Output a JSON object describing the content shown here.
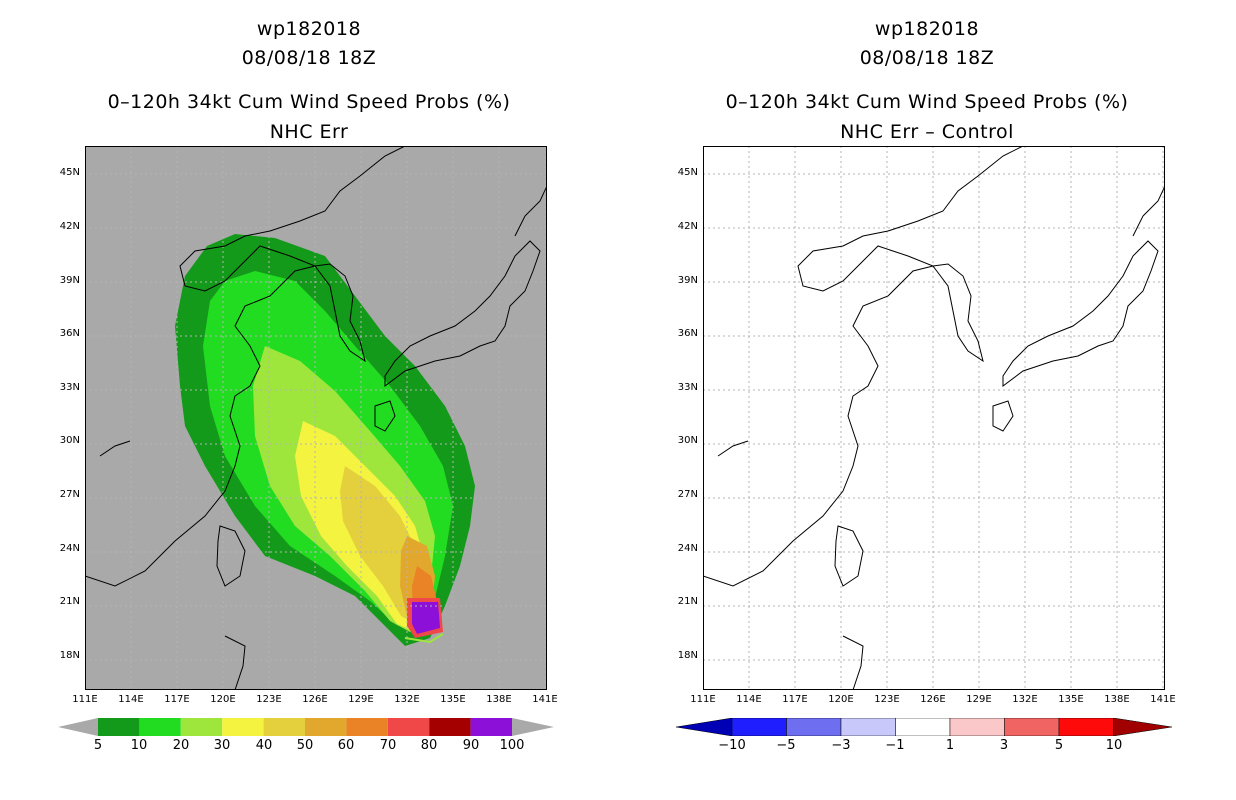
{
  "left": {
    "storm": "wp182018",
    "datetime": "08/08/18 18Z",
    "product": "0–120h 34kt Cum Wind Speed Probs (%)",
    "subtitle": "NHC Err",
    "colorbar": {
      "labels": [
        "5",
        "10",
        "20",
        "30",
        "40",
        "50",
        "60",
        "70",
        "80",
        "90",
        "100"
      ],
      "colors": [
        "#149a1a",
        "#22dc22",
        "#9ee63c",
        "#f4f440",
        "#e4d03c",
        "#e2a82e",
        "#ea8226",
        "#f04848",
        "#a40000",
        "#8c10d8"
      ]
    }
  },
  "right": {
    "storm": "wp182018",
    "datetime": "08/08/18 18Z",
    "product": "0–120h 34kt Cum Wind Speed Probs (%)",
    "subtitle": "NHC Err – Control",
    "colorbar": {
      "labels": [
        "−10",
        "−5",
        "−3",
        "−1",
        "1",
        "3",
        "5",
        "10"
      ],
      "colors": [
        "#0000b4",
        "#1e1eff",
        "#6e6ef0",
        "#c8c8fa",
        "#ffffff",
        "#fac8c8",
        "#f06464",
        "#ff0a0a",
        "#a00000"
      ]
    }
  },
  "axes": {
    "lat_labels": [
      "45N",
      "42N",
      "39N",
      "36N",
      "33N",
      "30N",
      "27N",
      "24N",
      "21N",
      "18N"
    ],
    "lon_labels": [
      "111E",
      "114E",
      "117E",
      "120E",
      "123E",
      "126E",
      "129E",
      "132E",
      "135E",
      "138E",
      "141E"
    ]
  },
  "colors": {
    "map_background_left": "#a9a9a9",
    "map_background_right": "#ffffff",
    "grid": "#b4b4b4",
    "coast": "#000000"
  }
}
